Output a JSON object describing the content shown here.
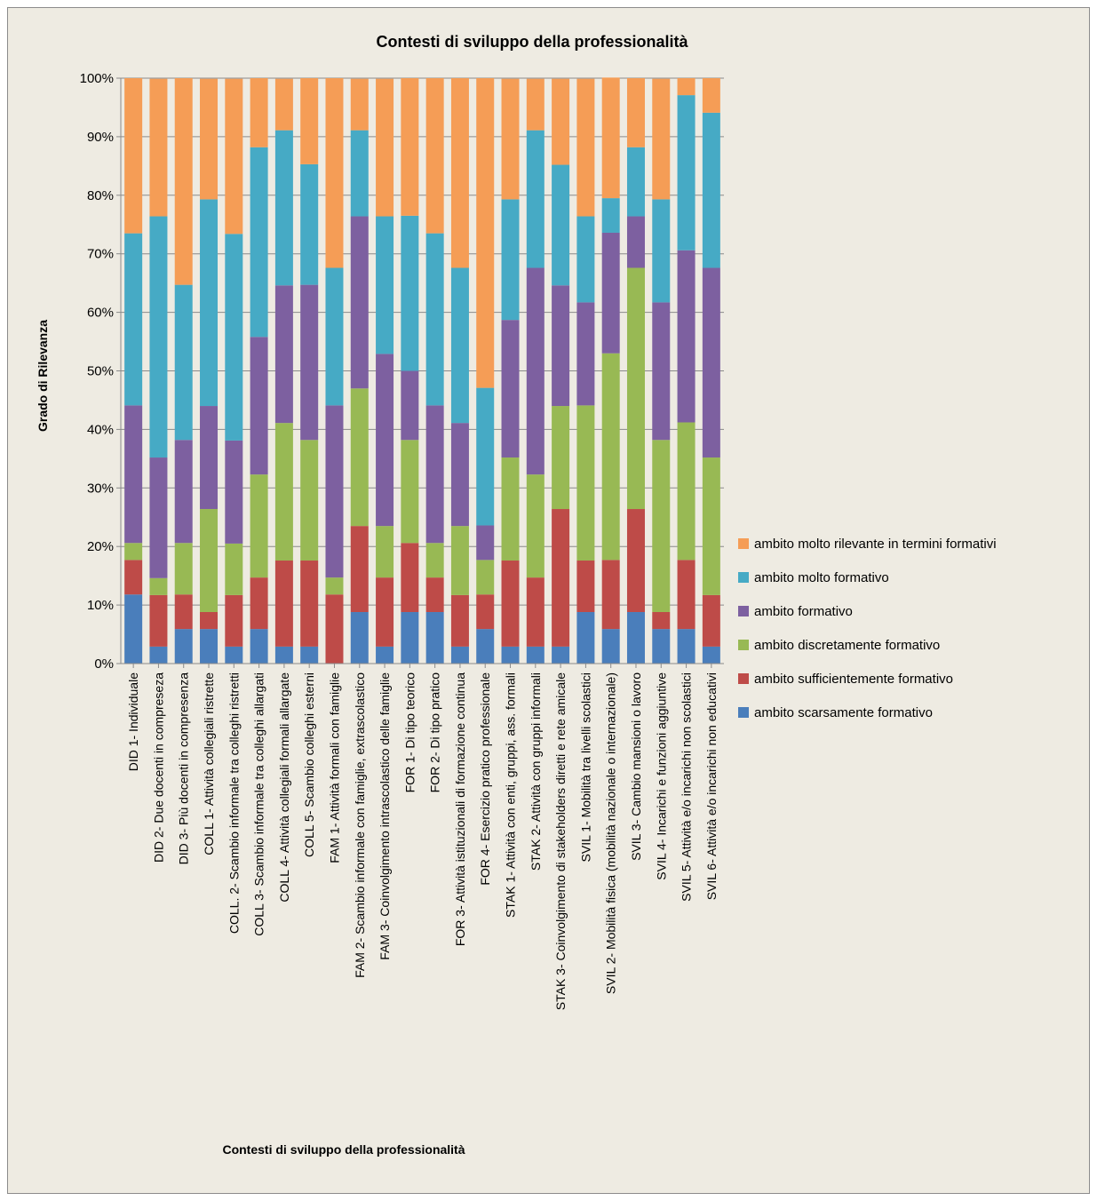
{
  "chart_data": {
    "type": "bar",
    "stacked": "percent",
    "title": "Contesti di sviluppo della professionalità",
    "xlabel": "Contesti di sviluppo  della professionalità",
    "ylabel": "Grado di Rilevanza",
    "ylim": [
      0,
      100
    ],
    "yticks": [
      "0%",
      "10%",
      "20%",
      "30%",
      "40%",
      "50%",
      "60%",
      "70%",
      "80%",
      "90%",
      "100%"
    ],
    "grid": true,
    "legend_position": "right",
    "categories": [
      "DID 1- Individuale",
      "DID 2- Due docenti in compreseza",
      "DID 3- Più docenti in compresenza",
      "COLL 1- Attività collegiali ristrette",
      "COLL. 2- Scambio informale tra colleghi ristretti",
      "COLL 3- Scambio informale tra colleghi allargati",
      "COLL 4- Attività collegiali formali allargate",
      "COLL 5- Scambio colleghi esterni",
      "FAM 1- Attività formali con famiglie",
      "FAM 2- Scambio informale con famiglie, extrascolastico",
      "FAM 3- Coinvolgimento  intrascolastico delle famiglie",
      "FOR 1- Di tipo teorico",
      "FOR 2- Di tipo pratico",
      "FOR 3- Attività  istituzionali  di formazione continua",
      "FOR 4- Esercizio pratico professionale",
      "STAK 1- Attività  con enti, gruppi, ass. formali",
      "STAK 2- Attività con gruppi informali",
      "STAK 3- Coinvolgimento  di stakeholders diretti e rete amicale",
      "SVIL 1- Mobilità tra livelli scolastici",
      "SVIL 2- Mobilità fisica (mobilità nazionale o internazionale)",
      "SVIL 3- Cambio mansioni o lavoro",
      "SVIL 4- Incarichi e funzioni aggiuntive",
      "SVIL 5- Attività e/o incarichi non scolastici",
      "SVIL 6- Attività e/o incarichi non educativi"
    ],
    "series": [
      {
        "name": "ambito scarsamente formativo",
        "color": "#4a7ebb",
        "values": [
          11.8,
          2.9,
          5.9,
          5.9,
          2.9,
          5.9,
          2.9,
          2.9,
          0.0,
          8.8,
          2.9,
          8.8,
          8.8,
          2.9,
          5.9,
          2.9,
          2.9,
          2.9,
          8.8,
          5.9,
          8.8,
          5.9,
          5.9,
          2.9
        ]
      },
      {
        "name": "ambito sufficientemente formativo",
        "color": "#be4b48",
        "values": [
          5.9,
          8.8,
          5.9,
          2.9,
          8.8,
          8.8,
          14.7,
          14.7,
          11.8,
          14.7,
          11.8,
          11.8,
          5.9,
          8.8,
          5.9,
          14.7,
          11.8,
          23.5,
          8.8,
          11.8,
          17.6,
          2.9,
          11.8,
          8.8
        ]
      },
      {
        "name": "ambito discretamente formativo",
        "color": "#98b954",
        "values": [
          2.9,
          2.9,
          8.8,
          17.6,
          8.8,
          17.6,
          23.5,
          20.6,
          2.9,
          23.5,
          8.8,
          17.6,
          5.9,
          11.8,
          5.9,
          17.6,
          17.6,
          17.6,
          26.5,
          35.3,
          41.2,
          29.4,
          23.5,
          23.5
        ]
      },
      {
        "name": "ambito formativo",
        "color": "#7d60a0",
        "values": [
          23.5,
          20.6,
          17.6,
          17.6,
          17.6,
          23.5,
          23.5,
          26.5,
          29.4,
          29.4,
          29.4,
          11.8,
          23.5,
          17.6,
          5.9,
          23.5,
          35.3,
          20.6,
          17.6,
          20.6,
          8.8,
          23.5,
          29.4,
          32.4
        ]
      },
      {
        "name": "ambito molto formativo",
        "color": "#46aac5",
        "values": [
          29.4,
          41.2,
          26.5,
          35.3,
          35.3,
          32.4,
          26.5,
          20.6,
          23.5,
          14.7,
          23.5,
          26.5,
          29.4,
          26.5,
          23.5,
          20.6,
          23.5,
          20.6,
          14.7,
          5.9,
          11.8,
          17.6,
          26.5,
          26.5
        ]
      },
      {
        "name": "ambito molto rilevante in termini formativi",
        "color": "#f59d56",
        "values": [
          26.5,
          23.5,
          35.3,
          20.6,
          26.5,
          11.8,
          8.8,
          14.7,
          32.4,
          8.8,
          23.5,
          23.5,
          26.5,
          32.4,
          52.9,
          20.6,
          8.8,
          14.7,
          23.5,
          20.6,
          11.8,
          20.6,
          2.9,
          5.9
        ]
      }
    ]
  }
}
